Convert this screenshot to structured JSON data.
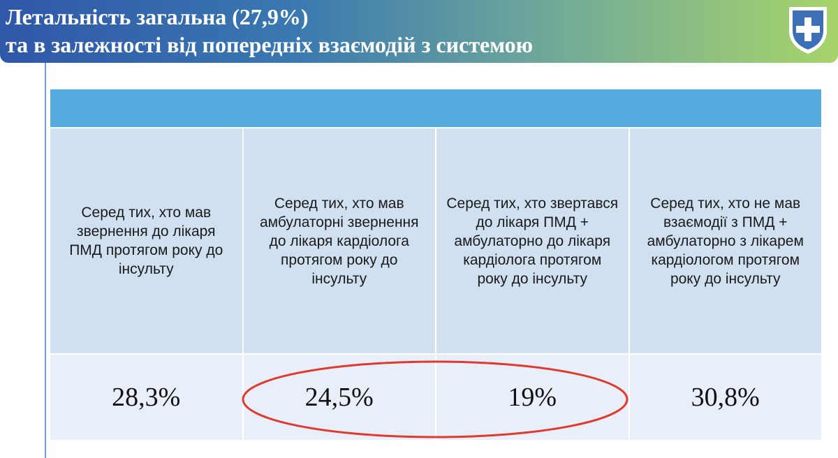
{
  "header": {
    "title_line1": "Летальність загальна (27,9%)",
    "title_line2": "та в залежності від попередніх взаємодій з системою",
    "logo_icon": "shield-cross-icon",
    "colors": {
      "gradient_start": "#2f57a8",
      "gradient_end": "#a7d46a",
      "shield": "#3b6fb8"
    }
  },
  "table": {
    "header_fill": "#55aade",
    "columns": [
      {
        "label": "Серед тих, хто мав звернення до лікаря ПМД протягом року до інсульту",
        "value": "28,3%"
      },
      {
        "label": "Серед тих, хто мав амбулаторні звернення до лікаря кардіолога протягом року до інсульту",
        "value": "24,5%"
      },
      {
        "label": "Серед тих, хто звертався до лікаря ПМД  + амбулаторно до лікаря кардіолога протягом року до інсульту",
        "value": "19%"
      },
      {
        "label": "Серед тих, хто не мав взаємодії з ПМД  + амбулаторно з лікарем кардіологом протягом року до інсульту",
        "value": "30,8%"
      }
    ]
  },
  "highlight": {
    "color": "#e03a2e"
  }
}
